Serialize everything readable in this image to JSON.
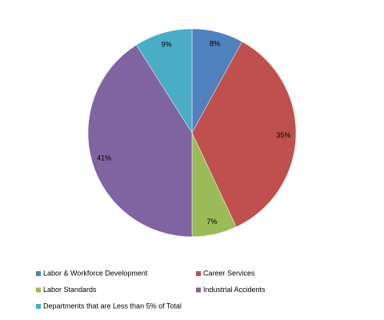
{
  "chart_data": {
    "type": "pie",
    "categories": [
      "Labor & Workforce Development",
      "Career Services",
      "Labor Standards",
      "Industrial Accidents",
      "Departments that are Less than 5% of Total"
    ],
    "values": [
      8,
      35,
      7,
      41,
      9
    ],
    "value_labels": [
      "8%",
      "35%",
      "7%",
      "41%",
      "9%"
    ],
    "colors": [
      "#4f81bd",
      "#c0504d",
      "#9bbb59",
      "#8064a2",
      "#4bacc6"
    ]
  }
}
